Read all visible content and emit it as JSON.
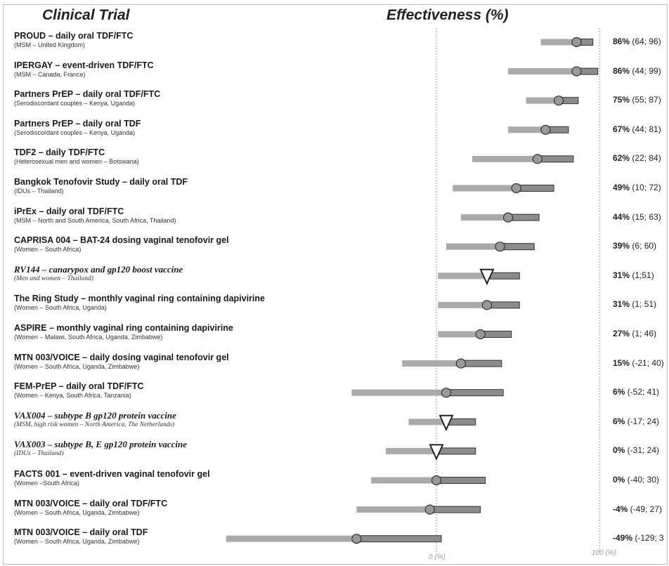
{
  "headers": {
    "trial": "Clinical Trial",
    "effectiveness": "Effectiveness (%)"
  },
  "axis": {
    "zero_label": "0 (%)",
    "hundred_label": "100 (%)"
  },
  "colors": {
    "bar_lower": "#aaaaaa",
    "bar_upper": "#8c8c8c",
    "bar_outline": "#333333",
    "marker": "#999999",
    "refline": "#999999"
  },
  "chart_data": {
    "type": "forest",
    "xlabel": "Effectiveness (%)",
    "xlim": [
      -129,
      100
    ],
    "reference_lines": [
      0,
      100
    ],
    "rows": [
      {
        "name": "PROUD – daily oral TDF/FTC",
        "sub": "(MSM – United Kingdom)",
        "kind": "circle",
        "value": 86,
        "low": 64,
        "high": 96,
        "label_pct": "86%",
        "label_ci": "(64; 96)"
      },
      {
        "name": "IPERGAY – event-driven TDF/FTC",
        "sub": "(MSM – Canada, France)",
        "kind": "circle",
        "value": 86,
        "low": 44,
        "high": 99,
        "label_pct": "86%",
        "label_ci": "(44; 99)"
      },
      {
        "name": "Partners PrEP – daily oral TDF/FTC",
        "sub": "(Serodiscordant couples – Kenya, Uganda)",
        "kind": "circle",
        "value": 75,
        "low": 55,
        "high": 87,
        "label_pct": "75%",
        "label_ci": "(55; 87)"
      },
      {
        "name": "Partners PrEP – daily oral TDF",
        "sub": "(Serodiscordant couples – Kenya, Uganda)",
        "kind": "circle",
        "value": 67,
        "low": 44,
        "high": 81,
        "label_pct": "67%",
        "label_ci": "(44; 81)"
      },
      {
        "name": "TDF2 – daily TDF/FTC",
        "sub": "(Heterosexual men and women – Botswana)",
        "kind": "circle",
        "value": 62,
        "low": 22,
        "high": 84,
        "label_pct": "62%",
        "label_ci": "(22; 84)"
      },
      {
        "name": "Bangkok Tenofovir Study – daily oral TDF",
        "sub": "(IDUs – Thailand)",
        "kind": "circle",
        "value": 49,
        "low": 10,
        "high": 72,
        "label_pct": "49%",
        "label_ci": "(10; 72)"
      },
      {
        "name": "iPrEx – daily oral TDF/FTC",
        "sub": "(MSM – North and South America, South Africa, Thailand)",
        "kind": "circle",
        "value": 44,
        "low": 15,
        "high": 63,
        "label_pct": "44%",
        "label_ci": "(15; 63)"
      },
      {
        "name": "CAPRISA 004 – BAT-24 dosing vaginal tenofovir gel",
        "sub": "(Women – South Africa)",
        "kind": "circle",
        "value": 39,
        "low": 6,
        "high": 60,
        "label_pct": "39%",
        "label_ci": "(6; 60)"
      },
      {
        "name": "RV144 – canarypox and gp120 boost vaccine",
        "sub": "(Men and women – Thailand)",
        "kind": "triangle",
        "value": 31,
        "low": 1,
        "high": 51,
        "label_pct": "31%",
        "label_ci": "(1;51)"
      },
      {
        "name": "The Ring Study – monthly vaginal ring containing dapivirine",
        "sub": "(Women – South Africa, Uganda)",
        "kind": "circle",
        "value": 31,
        "low": 1,
        "high": 51,
        "label_pct": "31%",
        "label_ci": "(1; 51)"
      },
      {
        "name": "ASPIRE – monthly vaginal ring containing dapivirine",
        "sub": "(Women – Malawi, South Africa, Uganda, Zimbabwe)",
        "kind": "circle",
        "value": 27,
        "low": 1,
        "high": 46,
        "label_pct": "27%",
        "label_ci": "(1; 46)"
      },
      {
        "name": "MTN 003/VOICE – daily dosing vaginal tenofovir gel",
        "sub": "(Women – South Africa, Uganda, Zimbabwe)",
        "kind": "circle",
        "value": 15,
        "low": -21,
        "high": 40,
        "label_pct": "15%",
        "label_ci": "(-21; 40)"
      },
      {
        "name": "FEM-PrEP – daily oral TDF/FTC",
        "sub": "(Women – Kenya, South Africa, Tanzania)",
        "kind": "circle",
        "value": 6,
        "low": -52,
        "high": 41,
        "label_pct": "6%",
        "label_ci": "(-52; 41)"
      },
      {
        "name": "VAX004 – subtype B gp120 protein vaccine",
        "sub": "(MSM, high risk women – North America, The Netherlands)",
        "kind": "triangle",
        "value": 6,
        "low": -17,
        "high": 24,
        "label_pct": "6%",
        "label_ci": "(-17; 24)"
      },
      {
        "name": "VAX003 – subtype B, E gp120 protein vaccine",
        "sub": "(IDUs – Thailand)",
        "kind": "triangle",
        "value": 0,
        "low": -31,
        "high": 24,
        "label_pct": "0%",
        "label_ci": "(-31; 24)"
      },
      {
        "name": "FACTS 001 – event-driven vaginal tenofovir gel",
        "sub": "(Women –South Africa)",
        "kind": "circle",
        "value": 0,
        "low": -40,
        "high": 30,
        "label_pct": "0%",
        "label_ci": "(-40; 30)"
      },
      {
        "name": "MTN 003/VOICE – daily oral TDF/FTC",
        "sub": "(Women – South Africa, Uganda, Zimbabwe)",
        "kind": "circle",
        "value": -4,
        "low": -49,
        "high": 27,
        "label_pct": "-4%",
        "label_ci": "(-49; 27)"
      },
      {
        "name": "MTN 003/VOICE – daily oral TDF",
        "sub": "(Women – South Africa, Uganda, Zimbabwe)",
        "kind": "circle",
        "value": -49,
        "low": -129,
        "high": 3,
        "label_pct": "-49%",
        "label_ci": "(-129; 3"
      }
    ]
  }
}
